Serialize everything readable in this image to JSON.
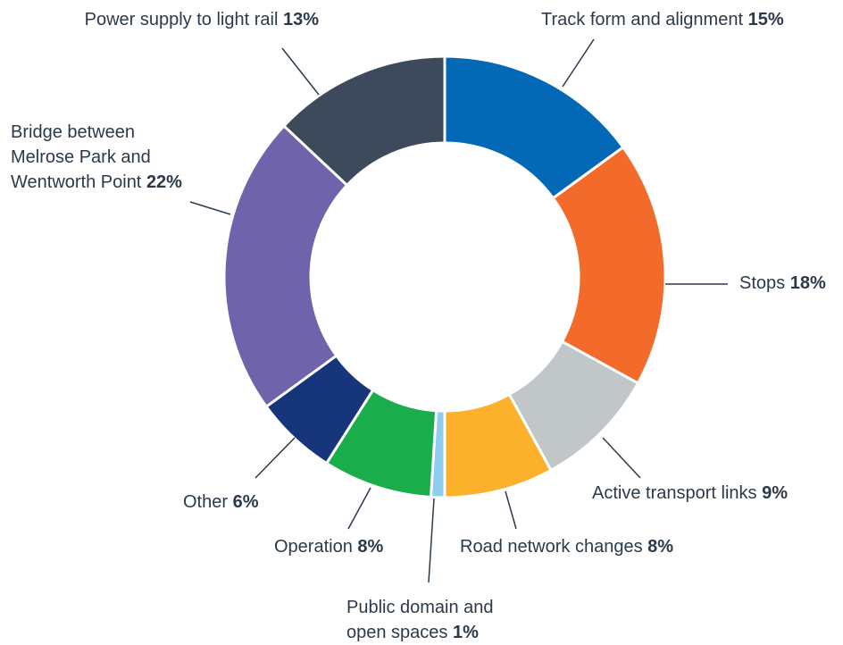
{
  "chart_data": {
    "type": "donut",
    "categories": [
      "Track form and alignment",
      "Stops",
      "Active transport links",
      "Road network changes",
      "Public domain and\nopen spaces",
      "Operation",
      "Other",
      "Bridge between\nMelrose Park and\nWentworth Point",
      "Power supply to light rail"
    ],
    "values": [
      15,
      18,
      9,
      8,
      1,
      8,
      6,
      22,
      13
    ],
    "value_labels": [
      "15%",
      "18%",
      "9%",
      "8%",
      "1%",
      "8%",
      "6%",
      "22%",
      "13%"
    ],
    "colors": [
      "#0368b5",
      "#f26b2a",
      "#c1c6c9",
      "#fbb12b",
      "#8fcdf0",
      "#19ad4c",
      "#17357a",
      "#6f64ab",
      "#3c4a5b"
    ]
  }
}
